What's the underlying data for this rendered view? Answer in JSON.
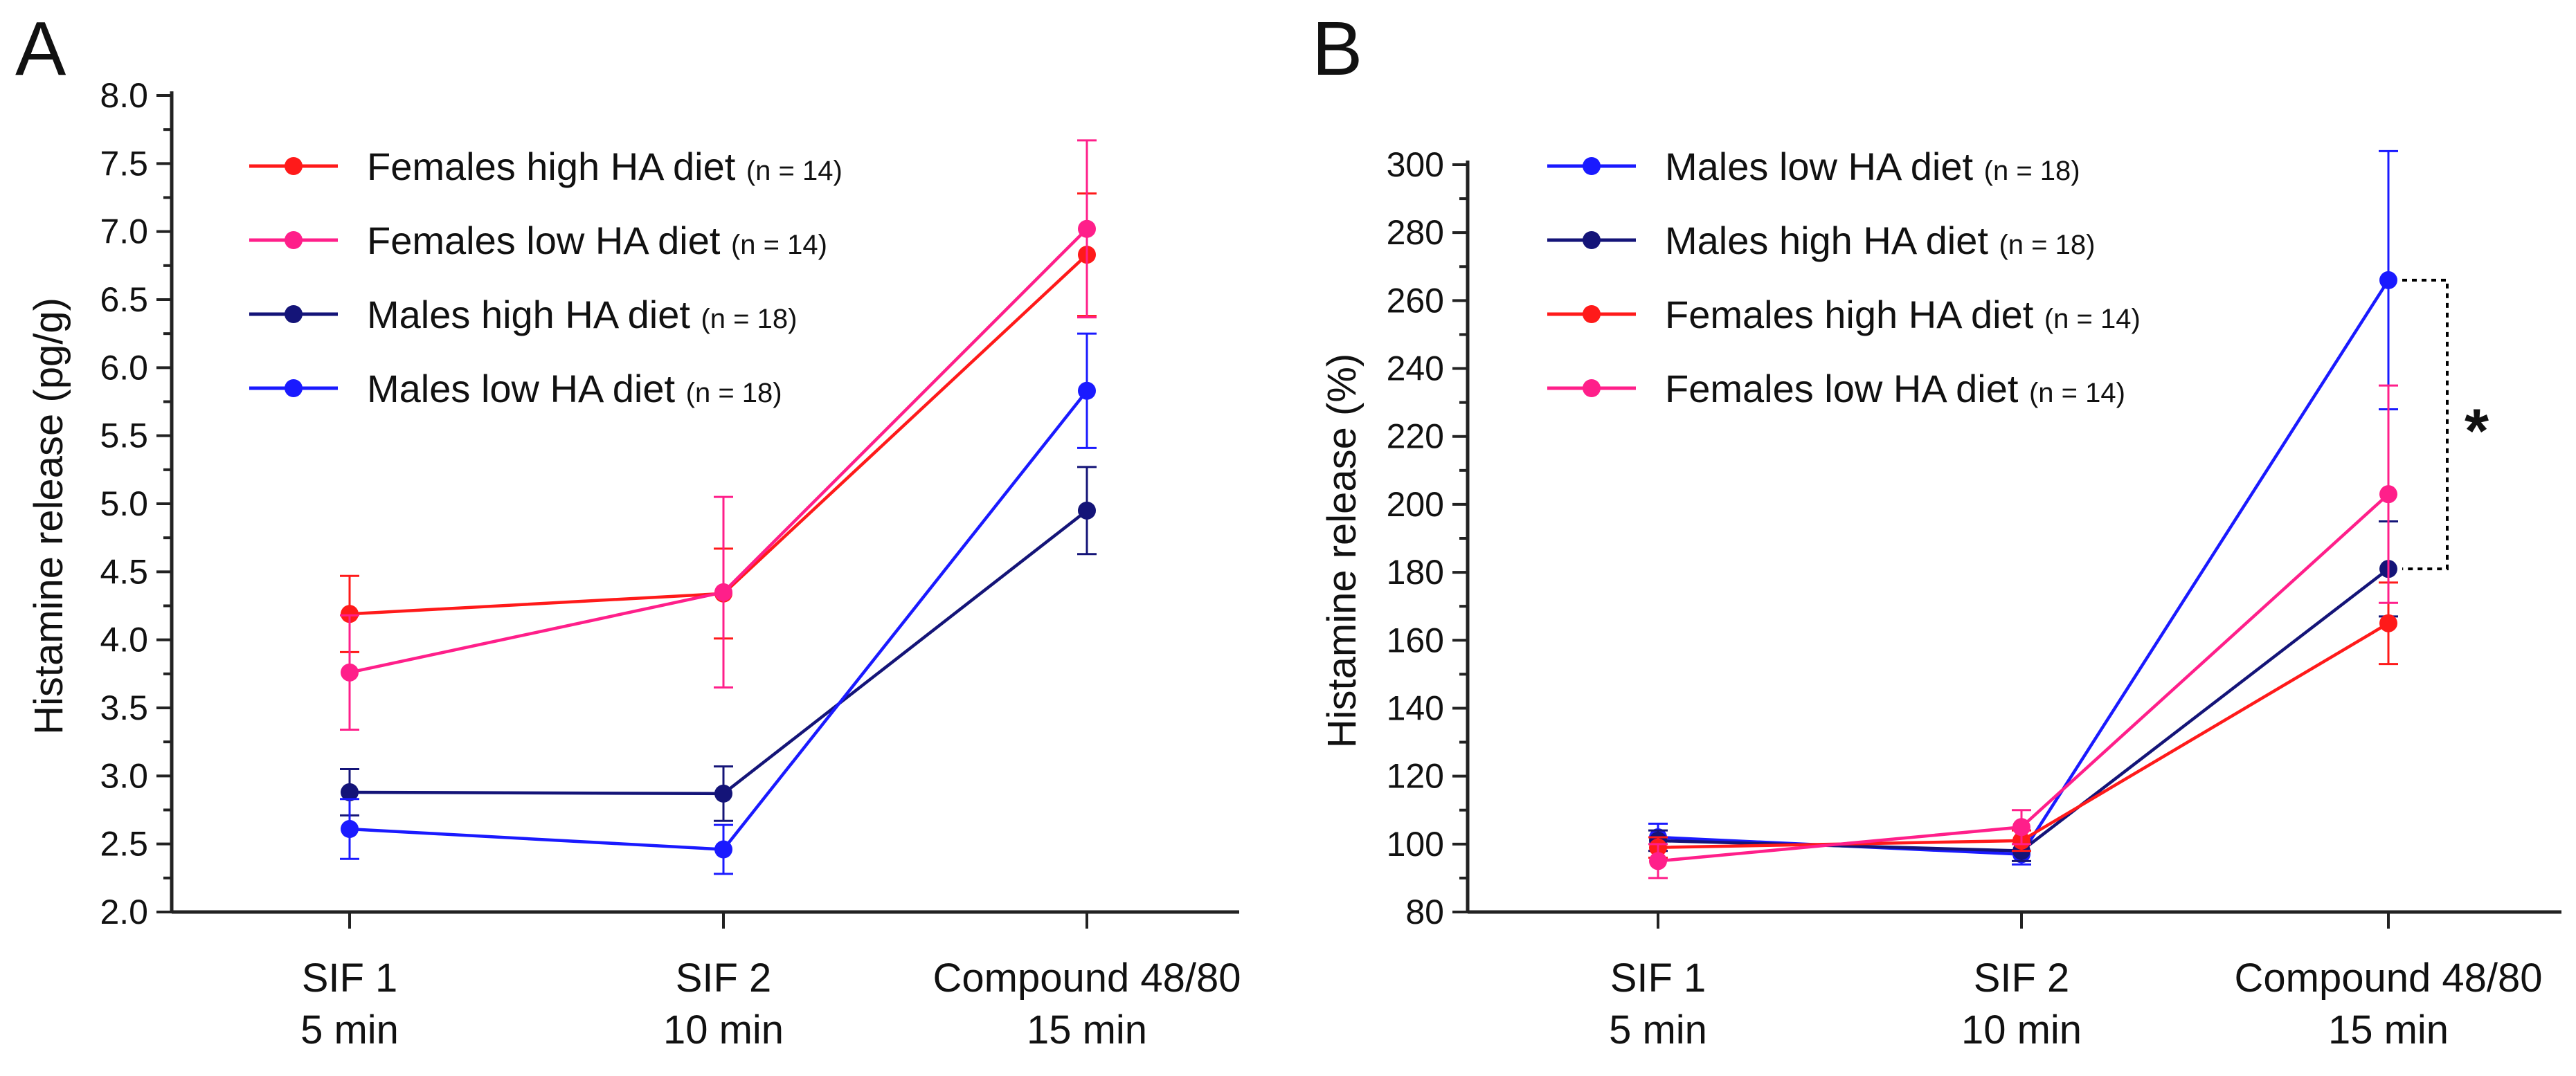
{
  "chart_data": [
    {
      "panel": "A",
      "type": "line",
      "title": "",
      "xlabel": "",
      "ylabel": "Histamine release  (pg/g)",
      "ylim": [
        2.0,
        8.0
      ],
      "yticks": [
        "2.0",
        "2.5",
        "3.0",
        "3.5",
        "4.0",
        "4.5",
        "5.0",
        "5.5",
        "6.0",
        "6.5",
        "7.0",
        "7.5",
        "8.0"
      ],
      "categories": [
        {
          "line1": "SIF 1",
          "line2": "5 min"
        },
        {
          "line1": "SIF 2",
          "line2": "10 min"
        },
        {
          "line1": "Compound 48/80",
          "line2": "15 min"
        }
      ],
      "legend_position": "top-left",
      "series": [
        {
          "name": "Females high HA diet",
          "n": "(n = 14)",
          "color": "#ff1a1a",
          "values": [
            4.19,
            4.34,
            6.83
          ],
          "errors": [
            0.28,
            0.33,
            0.45
          ]
        },
        {
          "name": "Females low HA diet",
          "n": "(n = 14)",
          "color": "#ff1f8a",
          "values": [
            3.76,
            4.35,
            7.02
          ],
          "errors": [
            0.42,
            0.7,
            0.65
          ]
        },
        {
          "name": "Males high HA diet",
          "n": "(n = 18)",
          "color": "#141478",
          "values": [
            2.88,
            2.87,
            4.95
          ],
          "errors": [
            0.17,
            0.2,
            0.32
          ]
        },
        {
          "name": "Males low HA diet",
          "n": "(n = 18)",
          "color": "#1a1aff",
          "values": [
            2.61,
            2.46,
            5.83
          ],
          "errors": [
            0.22,
            0.18,
            0.42
          ]
        }
      ]
    },
    {
      "panel": "B",
      "type": "line",
      "title": "",
      "xlabel": "",
      "ylabel": "Histamine release (%)",
      "ylim": [
        80,
        300
      ],
      "yticks": [
        "80",
        "100",
        "120",
        "140",
        "160",
        "180",
        "200",
        "220",
        "240",
        "260",
        "280",
        "300"
      ],
      "categories": [
        {
          "line1": "SIF 1",
          "line2": "5 min"
        },
        {
          "line1": "SIF 2",
          "line2": "10 min"
        },
        {
          "line1": "Compound 48/80",
          "line2": "15 min"
        }
      ],
      "legend_position": "top-left",
      "significance": {
        "label": "*",
        "between": [
          "Males low HA diet",
          "Males high HA diet"
        ],
        "category": 2
      },
      "series": [
        {
          "name": "Males low HA diet",
          "n": "(n = 18)",
          "color": "#1a1aff",
          "values": [
            102,
            97,
            266
          ],
          "errors": [
            4,
            3,
            38
          ]
        },
        {
          "name": "Males high HA diet",
          "n": "(n = 18)",
          "color": "#141478",
          "values": [
            101,
            98,
            181
          ],
          "errors": [
            3,
            3,
            14
          ]
        },
        {
          "name": "Females high HA diet",
          "n": "(n = 14)",
          "color": "#ff1a1a",
          "values": [
            99,
            101,
            165
          ],
          "errors": [
            3,
            3,
            12
          ]
        },
        {
          "name": "Females low HA diet",
          "n": "(n = 14)",
          "color": "#ff1f8a",
          "values": [
            95,
            105,
            203
          ],
          "errors": [
            5,
            5,
            32
          ]
        }
      ]
    }
  ]
}
